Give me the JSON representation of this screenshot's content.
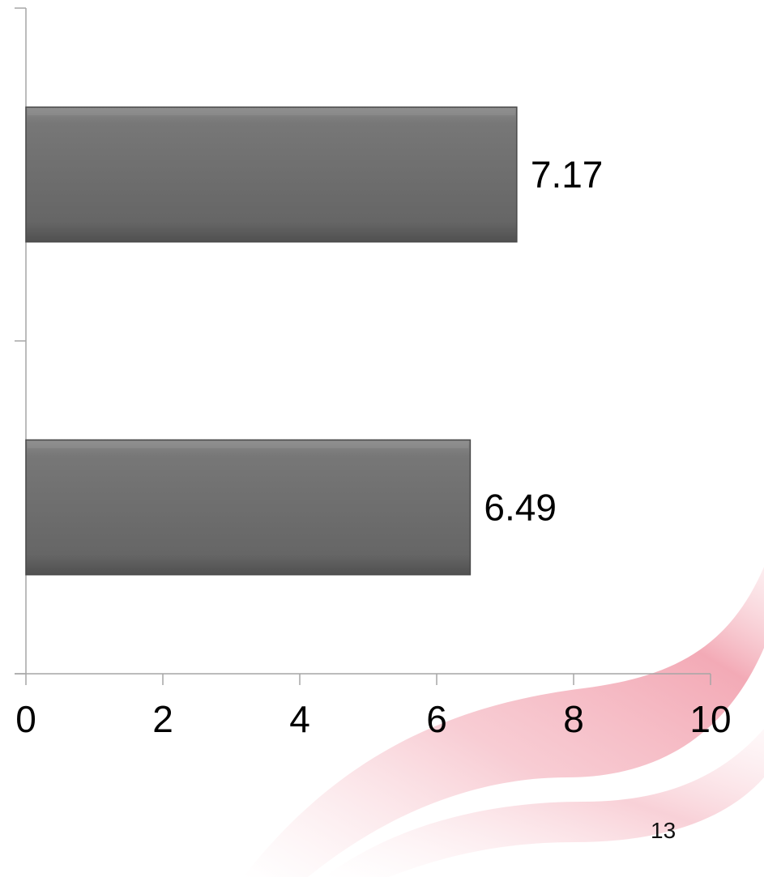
{
  "slide": {
    "page_number": "13"
  },
  "colors": {
    "bar_fill": "#6e6e6e",
    "bar_edge": "#4a4a4a",
    "axis": "#a6a6a6",
    "decor_swoosh": "#e8445a"
  },
  "chart_data": {
    "type": "bar",
    "orientation": "horizontal",
    "title": "",
    "xlabel": "",
    "ylabel": "",
    "categories": [
      "",
      ""
    ],
    "values": [
      7.17,
      6.49
    ],
    "data_labels": [
      "7.17",
      "6.49"
    ],
    "xlim": [
      0,
      10
    ],
    "x_ticks": [
      0,
      2,
      4,
      6,
      8,
      10
    ],
    "x_tick_labels": [
      "0",
      "2",
      "4",
      "6",
      "8",
      "10"
    ],
    "grid": false,
    "legend": "none"
  }
}
